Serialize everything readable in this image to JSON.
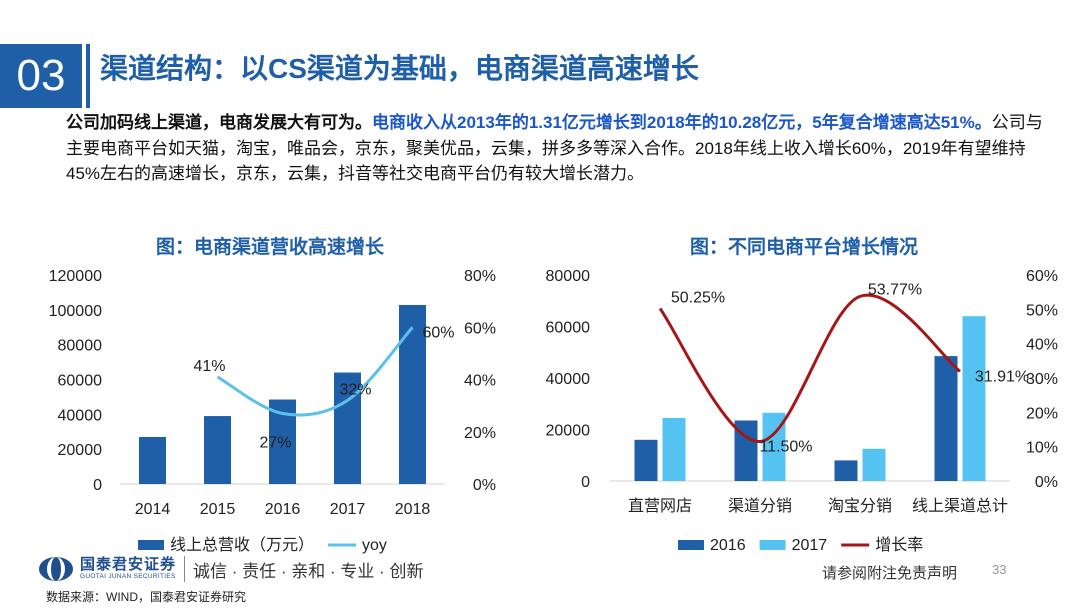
{
  "header": {
    "section_number": "03",
    "title": "渠道结构：以CS渠道为基础，电商渠道高速增长"
  },
  "summary": {
    "part1": "公司加码线上渠道，电商发展大有可为。",
    "part2": "电商收入从2013年的1.31亿元增长到2018年的10.28亿元，5年复合增速高达51%。",
    "part3": "公司与主要电商平台如天猫，淘宝，唯品会，京东，聚美优品，云集，拼多多等深入合作。2018年线上收入增长60%，2019年有望维持45%左右的高速增长，京东，云集，抖音等社交电商平台仍有较大增长潜力。"
  },
  "colors": {
    "title_blue": "#1f5fa8",
    "bar_dark": "#1f5fa8",
    "bar_light": "#54c3f1",
    "yoy_line": "#5bc1ea",
    "growth_line": "#a51616"
  },
  "chart_data": [
    {
      "type": "bar",
      "title": "图：电商渠道营收高速增长",
      "categories": [
        "2014",
        "2015",
        "2016",
        "2017",
        "2018"
      ],
      "series": [
        {
          "name": "线上总营收（万元）",
          "type": "bar",
          "axis": "left",
          "values": [
            27000,
            39000,
            48500,
            64000,
            102800
          ]
        },
        {
          "name": "yoy",
          "type": "line",
          "axis": "right",
          "smooth": true,
          "values": [
            null,
            0.41,
            0.27,
            0.32,
            0.6
          ],
          "labels": [
            null,
            "41%",
            "27%",
            "32%",
            "60%"
          ]
        }
      ],
      "y_left": {
        "min": 0,
        "max": 120000,
        "ticks": [
          "120000",
          "100000",
          "80000",
          "60000",
          "40000",
          "20000",
          "0"
        ]
      },
      "y_right": {
        "min": 0,
        "max": 0.8,
        "ticks": [
          "80%",
          "60%",
          "40%",
          "20%",
          "0%"
        ]
      },
      "legend": "bottom"
    },
    {
      "type": "bar",
      "title": "图：不同电商平台增长情况",
      "categories": [
        "直营网店",
        "渠道分销",
        "淘宝分销",
        "线上渠道总计"
      ],
      "series": [
        {
          "name": "2016",
          "type": "bar",
          "axis": "left",
          "values": [
            16000,
            23500,
            8000,
            48500
          ]
        },
        {
          "name": "2017",
          "type": "bar",
          "axis": "left",
          "values": [
            24500,
            26500,
            12500,
            64000
          ]
        },
        {
          "name": "增长率",
          "type": "line",
          "axis": "right",
          "smooth": true,
          "values": [
            0.5025,
            0.115,
            0.5377,
            0.3191
          ],
          "labels": [
            "50.25%",
            "11.50%",
            "53.77%",
            "31.91%"
          ]
        }
      ],
      "y_left": {
        "min": 0,
        "max": 80000,
        "ticks": [
          "80000",
          "60000",
          "40000",
          "20000",
          "0"
        ]
      },
      "y_right": {
        "min": 0,
        "max": 0.6,
        "ticks": [
          "60%",
          "50%",
          "40%",
          "30%",
          "20%",
          "10%",
          "0%"
        ]
      },
      "legend": "bottom"
    }
  ],
  "footer": {
    "brand_cn": "国泰君安证券",
    "brand_en": "GUOTAI JUNAN SECURITIES",
    "motto": "诚信 · 责任 · 亲和 · 专业 · 创新",
    "disclaimer": "请参阅附注免责声明",
    "page_number": "33",
    "source": "数据来源：WIND，国泰君安证券研究"
  }
}
